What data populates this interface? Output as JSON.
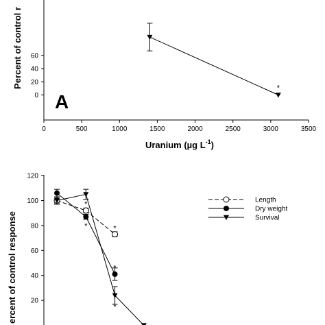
{
  "chart_data": [
    {
      "type": "line",
      "panel_label": "A",
      "ylabel": "Percent of control r",
      "xlabel_main": "Uranium (µg L",
      "xlabel_sup": "-1",
      "xlabel_close": ")",
      "xlim": [
        0,
        3500
      ],
      "ylim": [
        -15,
        80
      ],
      "x_ticks": [
        0,
        500,
        1000,
        1500,
        2000,
        2500,
        3000,
        3500
      ],
      "x_tick_labels": [
        "0",
        "500",
        "1000",
        "1500",
        "2000",
        "2500",
        "3000",
        "3500"
      ],
      "y_ticks": [
        0,
        20,
        40,
        60
      ],
      "y_tick_labels": [
        "0",
        "20",
        "40",
        "60"
      ],
      "series": [
        {
          "marker": "triangle-down",
          "points": [
            {
              "x": 1400,
              "y": 88,
              "err": 21,
              "star": ""
            },
            {
              "x": 3100,
              "y": 0,
              "err": 0,
              "star": "*"
            }
          ]
        }
      ]
    },
    {
      "type": "line",
      "ylabel": "ercent of control response",
      "ylim": [
        0,
        120
      ],
      "y_ticks": [
        20,
        40,
        60,
        80,
        100,
        120
      ],
      "y_tick_labels": [
        "20",
        "40",
        "60",
        "80",
        "100",
        "120"
      ],
      "x": [
        0,
        1,
        2,
        3
      ],
      "xlim": [
        -0.45,
        3.95
      ],
      "legend_position": "top-right",
      "series": [
        {
          "name": "Length",
          "marker": "circle-open",
          "line": "dashed",
          "points": [
            {
              "x": 0,
              "y": 100,
              "err": 3,
              "star": ""
            },
            {
              "x": 1,
              "y": 92,
              "err": 2,
              "star": "*"
            },
            {
              "x": 2,
              "y": 73,
              "err": 2,
              "star": "*"
            }
          ]
        },
        {
          "name": "Dry weight",
          "marker": "circle-filled",
          "line": "solid",
          "points": [
            {
              "x": 0,
              "y": 106,
              "err": 3,
              "star": ""
            },
            {
              "x": 1,
              "y": 87,
              "err": 2,
              "star": "*"
            },
            {
              "x": 2,
              "y": 41,
              "err": 5,
              "star": "*"
            }
          ]
        },
        {
          "name": "Survival",
          "marker": "triangle-down",
          "line": "solid",
          "points": [
            {
              "x": 0,
              "y": 100,
              "err": 2,
              "star": ""
            },
            {
              "x": 1,
              "y": 105,
              "err": 4,
              "star": ""
            },
            {
              "x": 2,
              "y": 24,
              "err": 7,
              "star": "*"
            },
            {
              "x": 3,
              "y": 0,
              "err": 0,
              "star": ""
            }
          ]
        }
      ]
    }
  ]
}
